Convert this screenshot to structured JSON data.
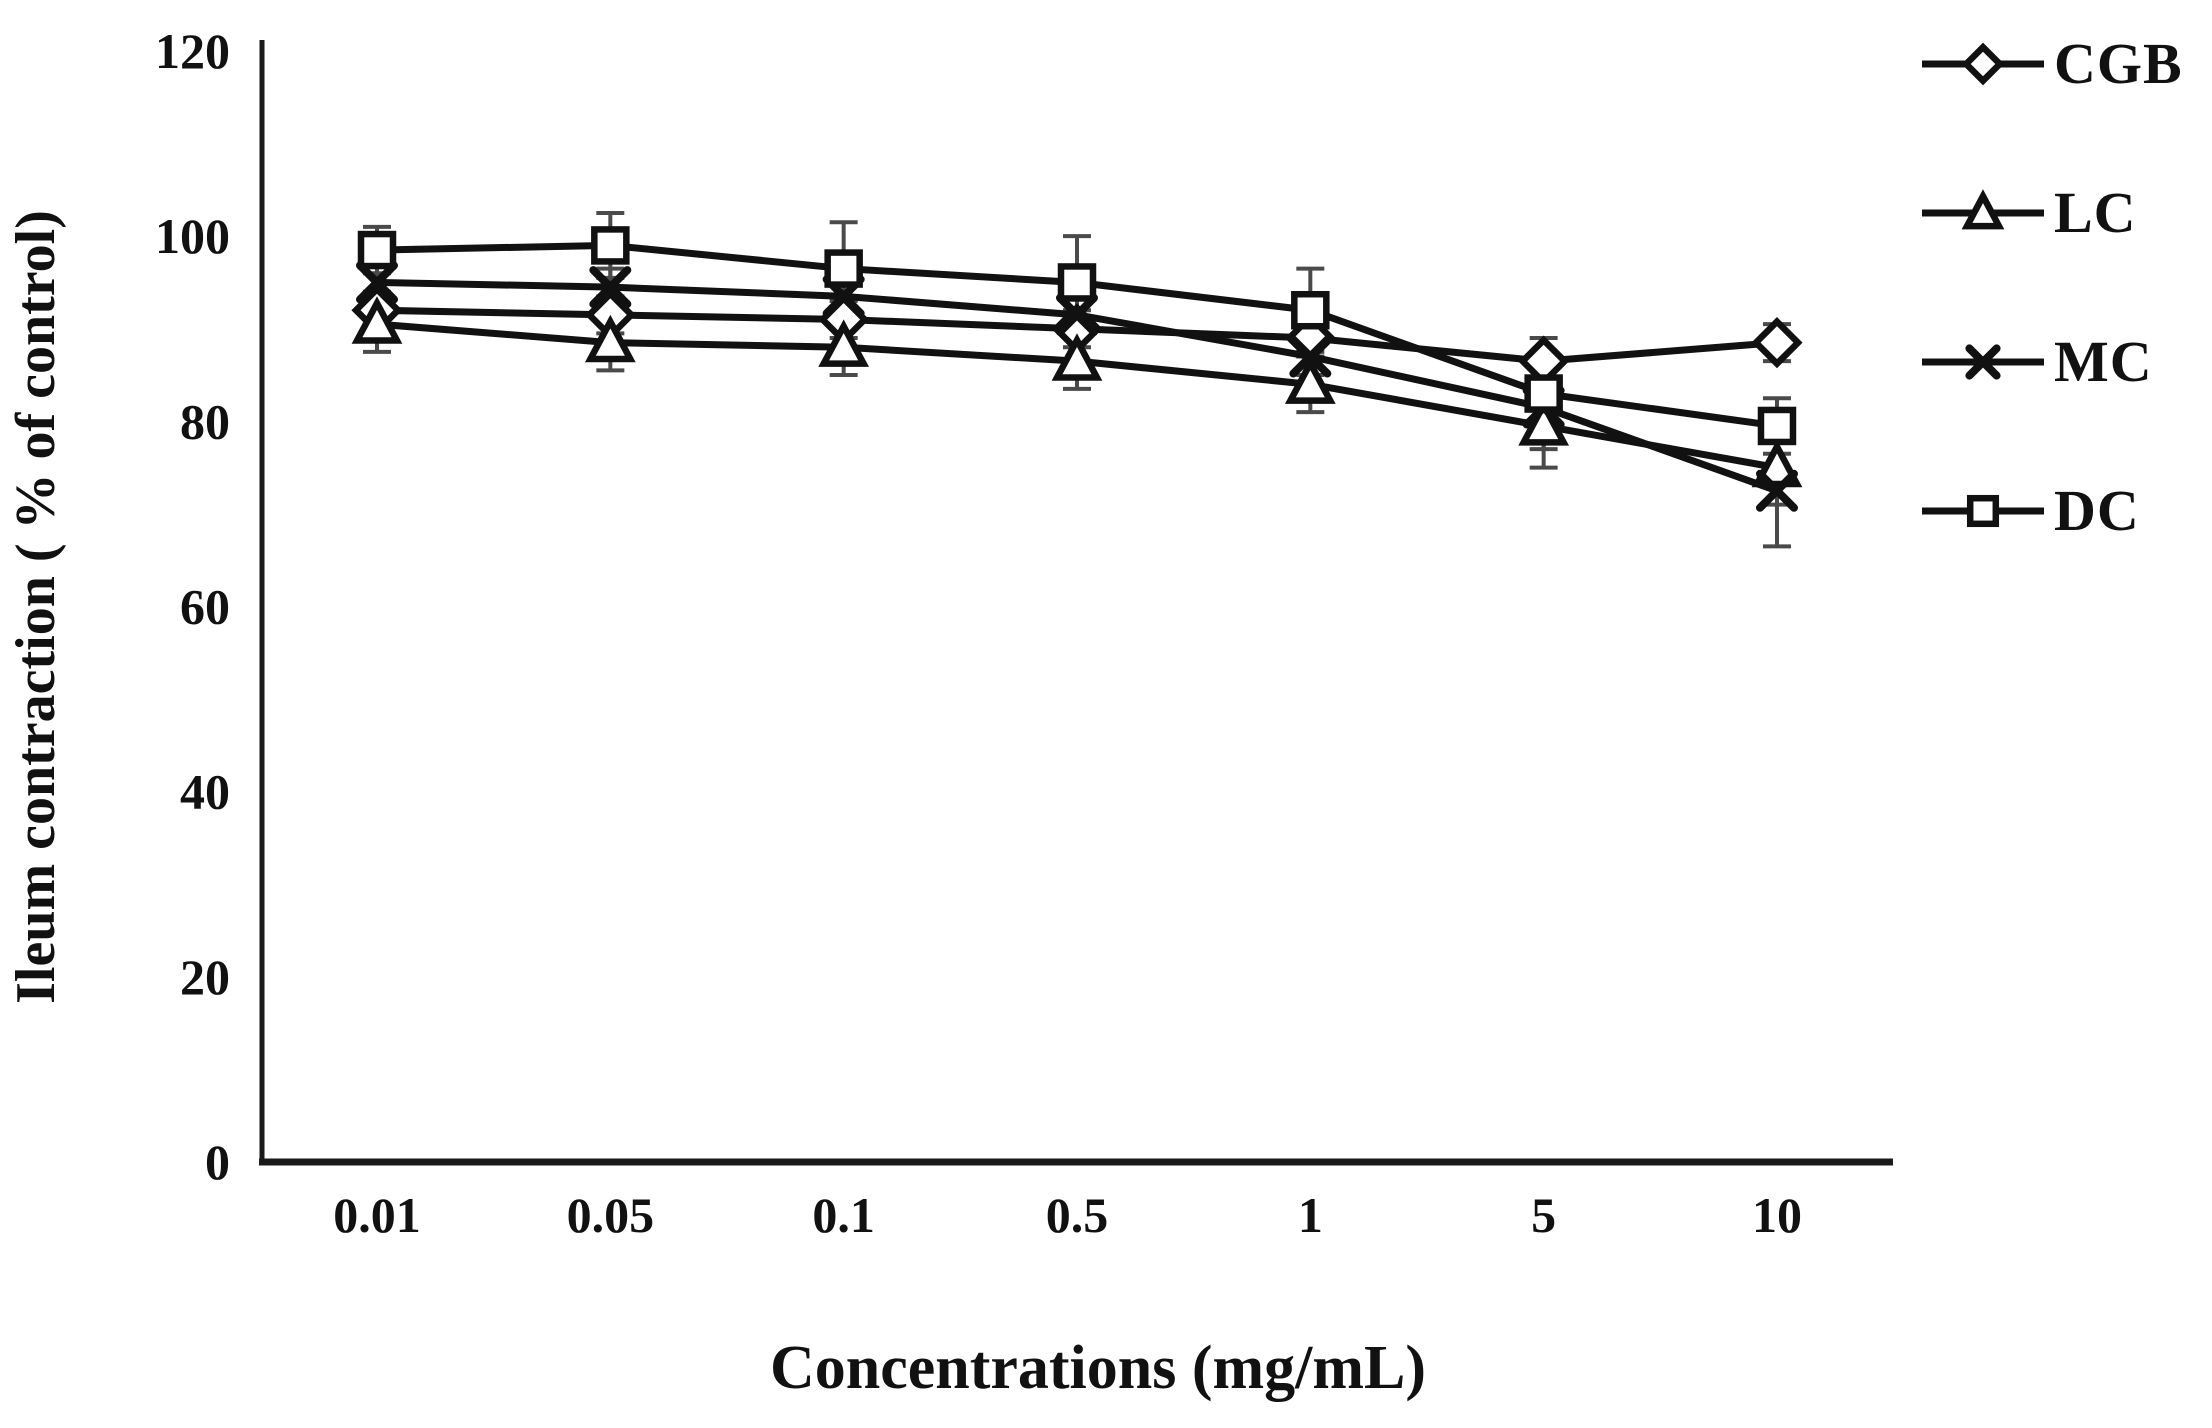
{
  "chart_data": {
    "type": "line",
    "title": "",
    "xlabel": "Concentrations (mg/mL)",
    "ylabel": "Ileum contraction ( % of control)",
    "categories": [
      "0.01",
      "0.05",
      "0.1",
      "0.5",
      "1",
      "5",
      "10"
    ],
    "y_ticks": [
      0,
      20,
      40,
      60,
      80,
      100,
      120
    ],
    "ylim": [
      0,
      120
    ],
    "grid": false,
    "legend_position": "right",
    "line_color": "#111111",
    "errorbar_color": "#4a4a4a",
    "series": [
      {
        "name": "CGB",
        "marker": "diamond",
        "values": [
          92,
          91.5,
          91,
          90,
          89,
          86.5,
          88.5
        ],
        "errors": [
          2,
          2,
          2,
          2,
          2,
          2.5,
          2
        ]
      },
      {
        "name": "LC",
        "marker": "triangle",
        "values": [
          90.5,
          88.5,
          88,
          86.5,
          84,
          79.5,
          75
        ],
        "errors": [
          3,
          3,
          3,
          3,
          3,
          4.5,
          4
        ]
      },
      {
        "name": "MC",
        "marker": "x",
        "values": [
          95,
          94.5,
          93.5,
          91.5,
          87,
          81.5,
          72.5
        ],
        "errors": [
          2,
          2,
          2,
          2,
          2,
          4.5,
          6
        ]
      },
      {
        "name": "DC",
        "marker": "square",
        "values": [
          98.5,
          99,
          96.5,
          95,
          92,
          83,
          79.5
        ],
        "errors": [
          2.5,
          3.5,
          5,
          5,
          4.5,
          3,
          3
        ]
      }
    ]
  }
}
